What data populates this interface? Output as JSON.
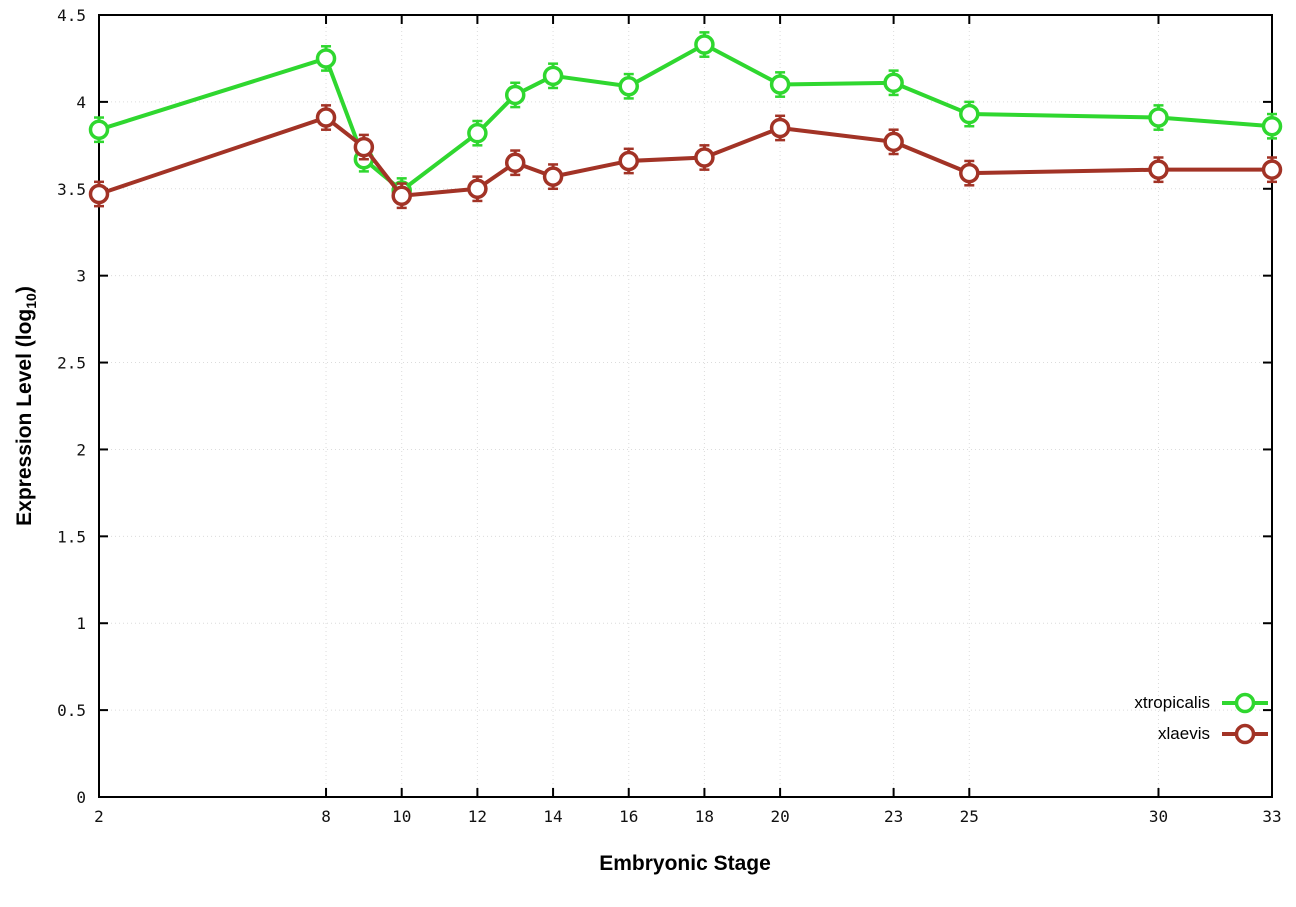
{
  "chart_data": {
    "type": "line",
    "title": "",
    "xlabel": "Embryonic Stage",
    "ylabel": {
      "pre": "Expression Level (log",
      "sub": "10",
      "post": ")"
    },
    "x": [
      2,
      8,
      9,
      10,
      12,
      13,
      14,
      16,
      18,
      20,
      23,
      25,
      30,
      33
    ],
    "x_tick_labels": [
      2,
      8,
      10,
      12,
      14,
      16,
      18,
      20,
      23,
      25,
      30,
      33
    ],
    "y_tick_labels": [
      0,
      0.5,
      1,
      1.5,
      2,
      2.5,
      3,
      3.5,
      4,
      4.5
    ],
    "xlim": [
      2,
      33
    ],
    "ylim": [
      0,
      4.5
    ],
    "grid": true,
    "legend_position": "bottom-right",
    "series": [
      {
        "name": "xtropicalis",
        "color": "#2fd72f",
        "values": [
          3.84,
          4.25,
          3.67,
          3.49,
          3.82,
          4.04,
          4.15,
          4.09,
          4.33,
          4.1,
          4.11,
          3.93,
          3.91,
          3.86
        ],
        "error": 0.07
      },
      {
        "name": "xlaevis",
        "color": "#a23326",
        "values": [
          3.47,
          3.91,
          3.74,
          3.46,
          3.5,
          3.65,
          3.57,
          3.66,
          3.68,
          3.85,
          3.77,
          3.59,
          3.61,
          3.61
        ],
        "error": 0.07
      }
    ]
  }
}
